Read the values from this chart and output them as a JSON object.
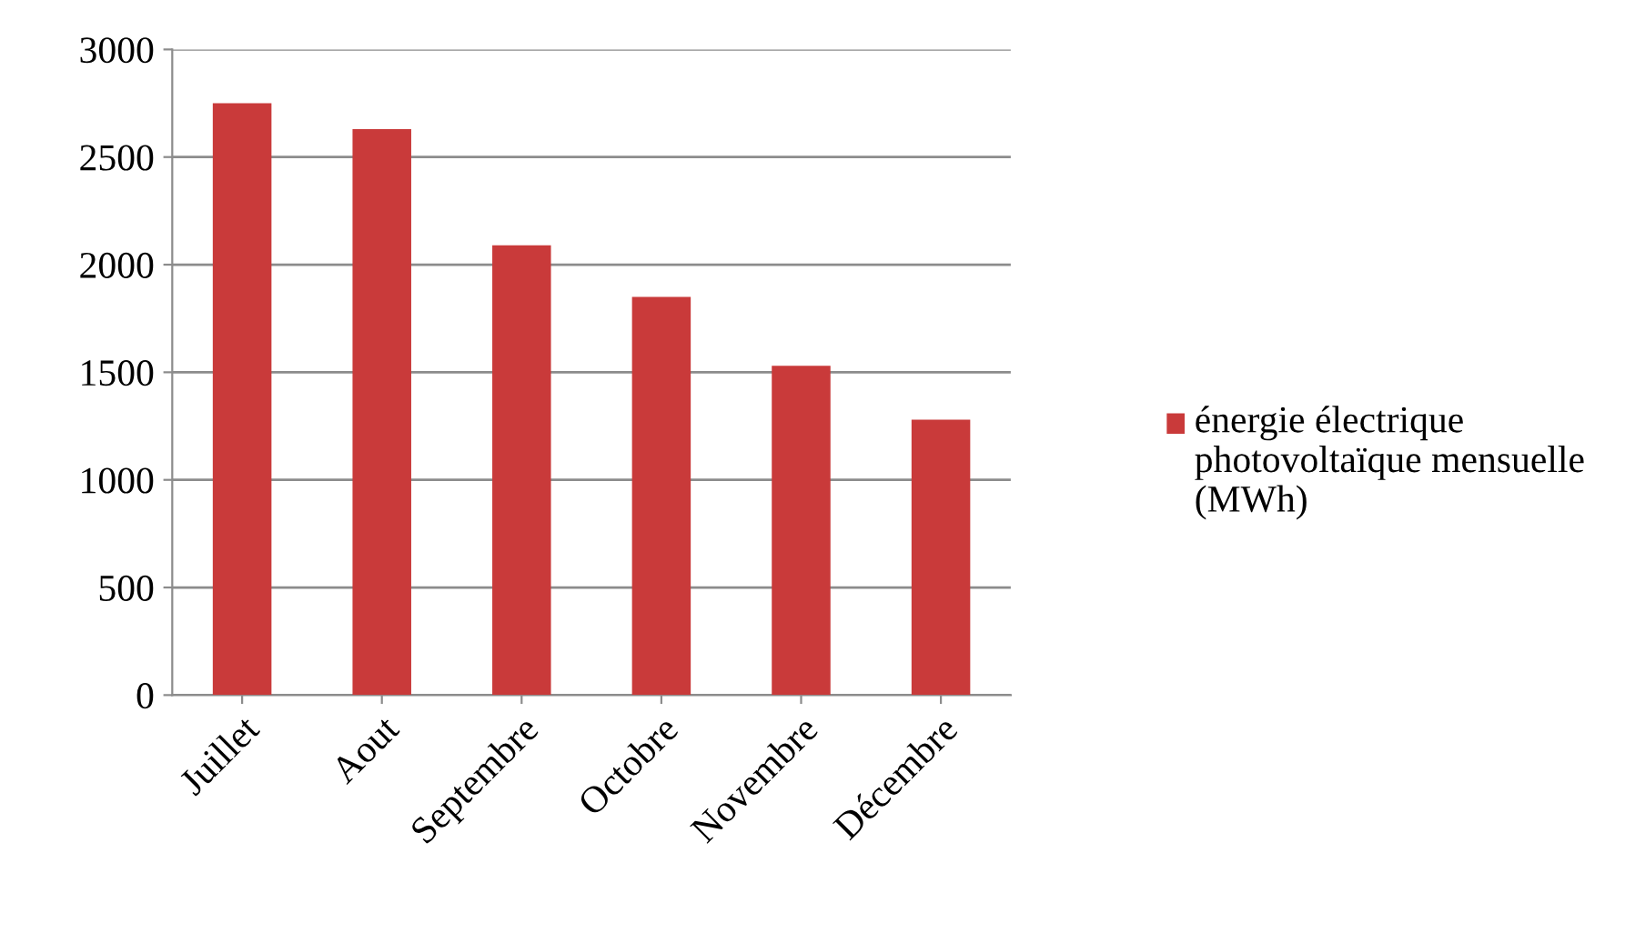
{
  "chart_data": {
    "type": "bar",
    "categories": [
      "Juillet",
      "Aout",
      "Septembre",
      "Octobre",
      "Novembre",
      "Décembre"
    ],
    "series": [
      {
        "name": "énergie électrique photovoltaïque mensuelle (MWh)",
        "color": "#c93a3a",
        "values": [
          2750,
          2630,
          2090,
          1850,
          1530,
          1280
        ]
      }
    ],
    "ylim": [
      0,
      3000
    ],
    "yticks": [
      0,
      500,
      1000,
      1500,
      2000,
      2500,
      3000
    ],
    "grid": "y",
    "legend": "right"
  }
}
